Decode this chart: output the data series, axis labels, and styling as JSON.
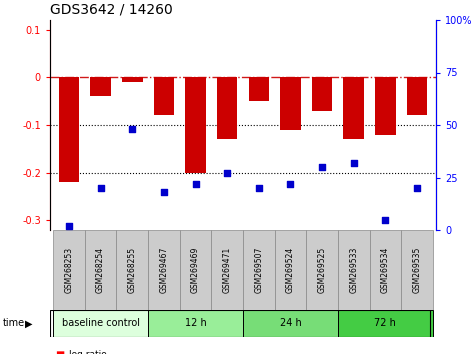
{
  "title": "GDS3642 / 14260",
  "samples": [
    "GSM268253",
    "GSM268254",
    "GSM268255",
    "GSM269467",
    "GSM269469",
    "GSM269471",
    "GSM269507",
    "GSM269524",
    "GSM269525",
    "GSM269533",
    "GSM269534",
    "GSM269535"
  ],
  "log_ratio": [
    -0.22,
    -0.04,
    -0.01,
    -0.08,
    -0.2,
    -0.13,
    -0.05,
    -0.11,
    -0.07,
    -0.13,
    -0.12,
    -0.08
  ],
  "percentile_rank": [
    2,
    20,
    48,
    18,
    22,
    27,
    20,
    22,
    30,
    32,
    5,
    20
  ],
  "groups": [
    {
      "label": "baseline control",
      "start": 0,
      "end": 3,
      "color": "#ddffdd"
    },
    {
      "label": "12 h",
      "start": 3,
      "end": 6,
      "color": "#99ee99"
    },
    {
      "label": "24 h",
      "start": 6,
      "end": 9,
      "color": "#77dd77"
    },
    {
      "label": "72 h",
      "start": 9,
      "end": 12,
      "color": "#44cc44"
    }
  ],
  "bar_color": "#cc0000",
  "point_color": "#0000cc",
  "ylim_left": [
    -0.32,
    0.12
  ],
  "ylim_right": [
    0,
    100
  ],
  "yticks_left": [
    0.1,
    0.0,
    -0.1,
    -0.2,
    -0.3
  ],
  "yticks_right": [
    100,
    75,
    50,
    25,
    0
  ],
  "hline_zero_color": "#cc0000",
  "dotline_color": "#000000"
}
